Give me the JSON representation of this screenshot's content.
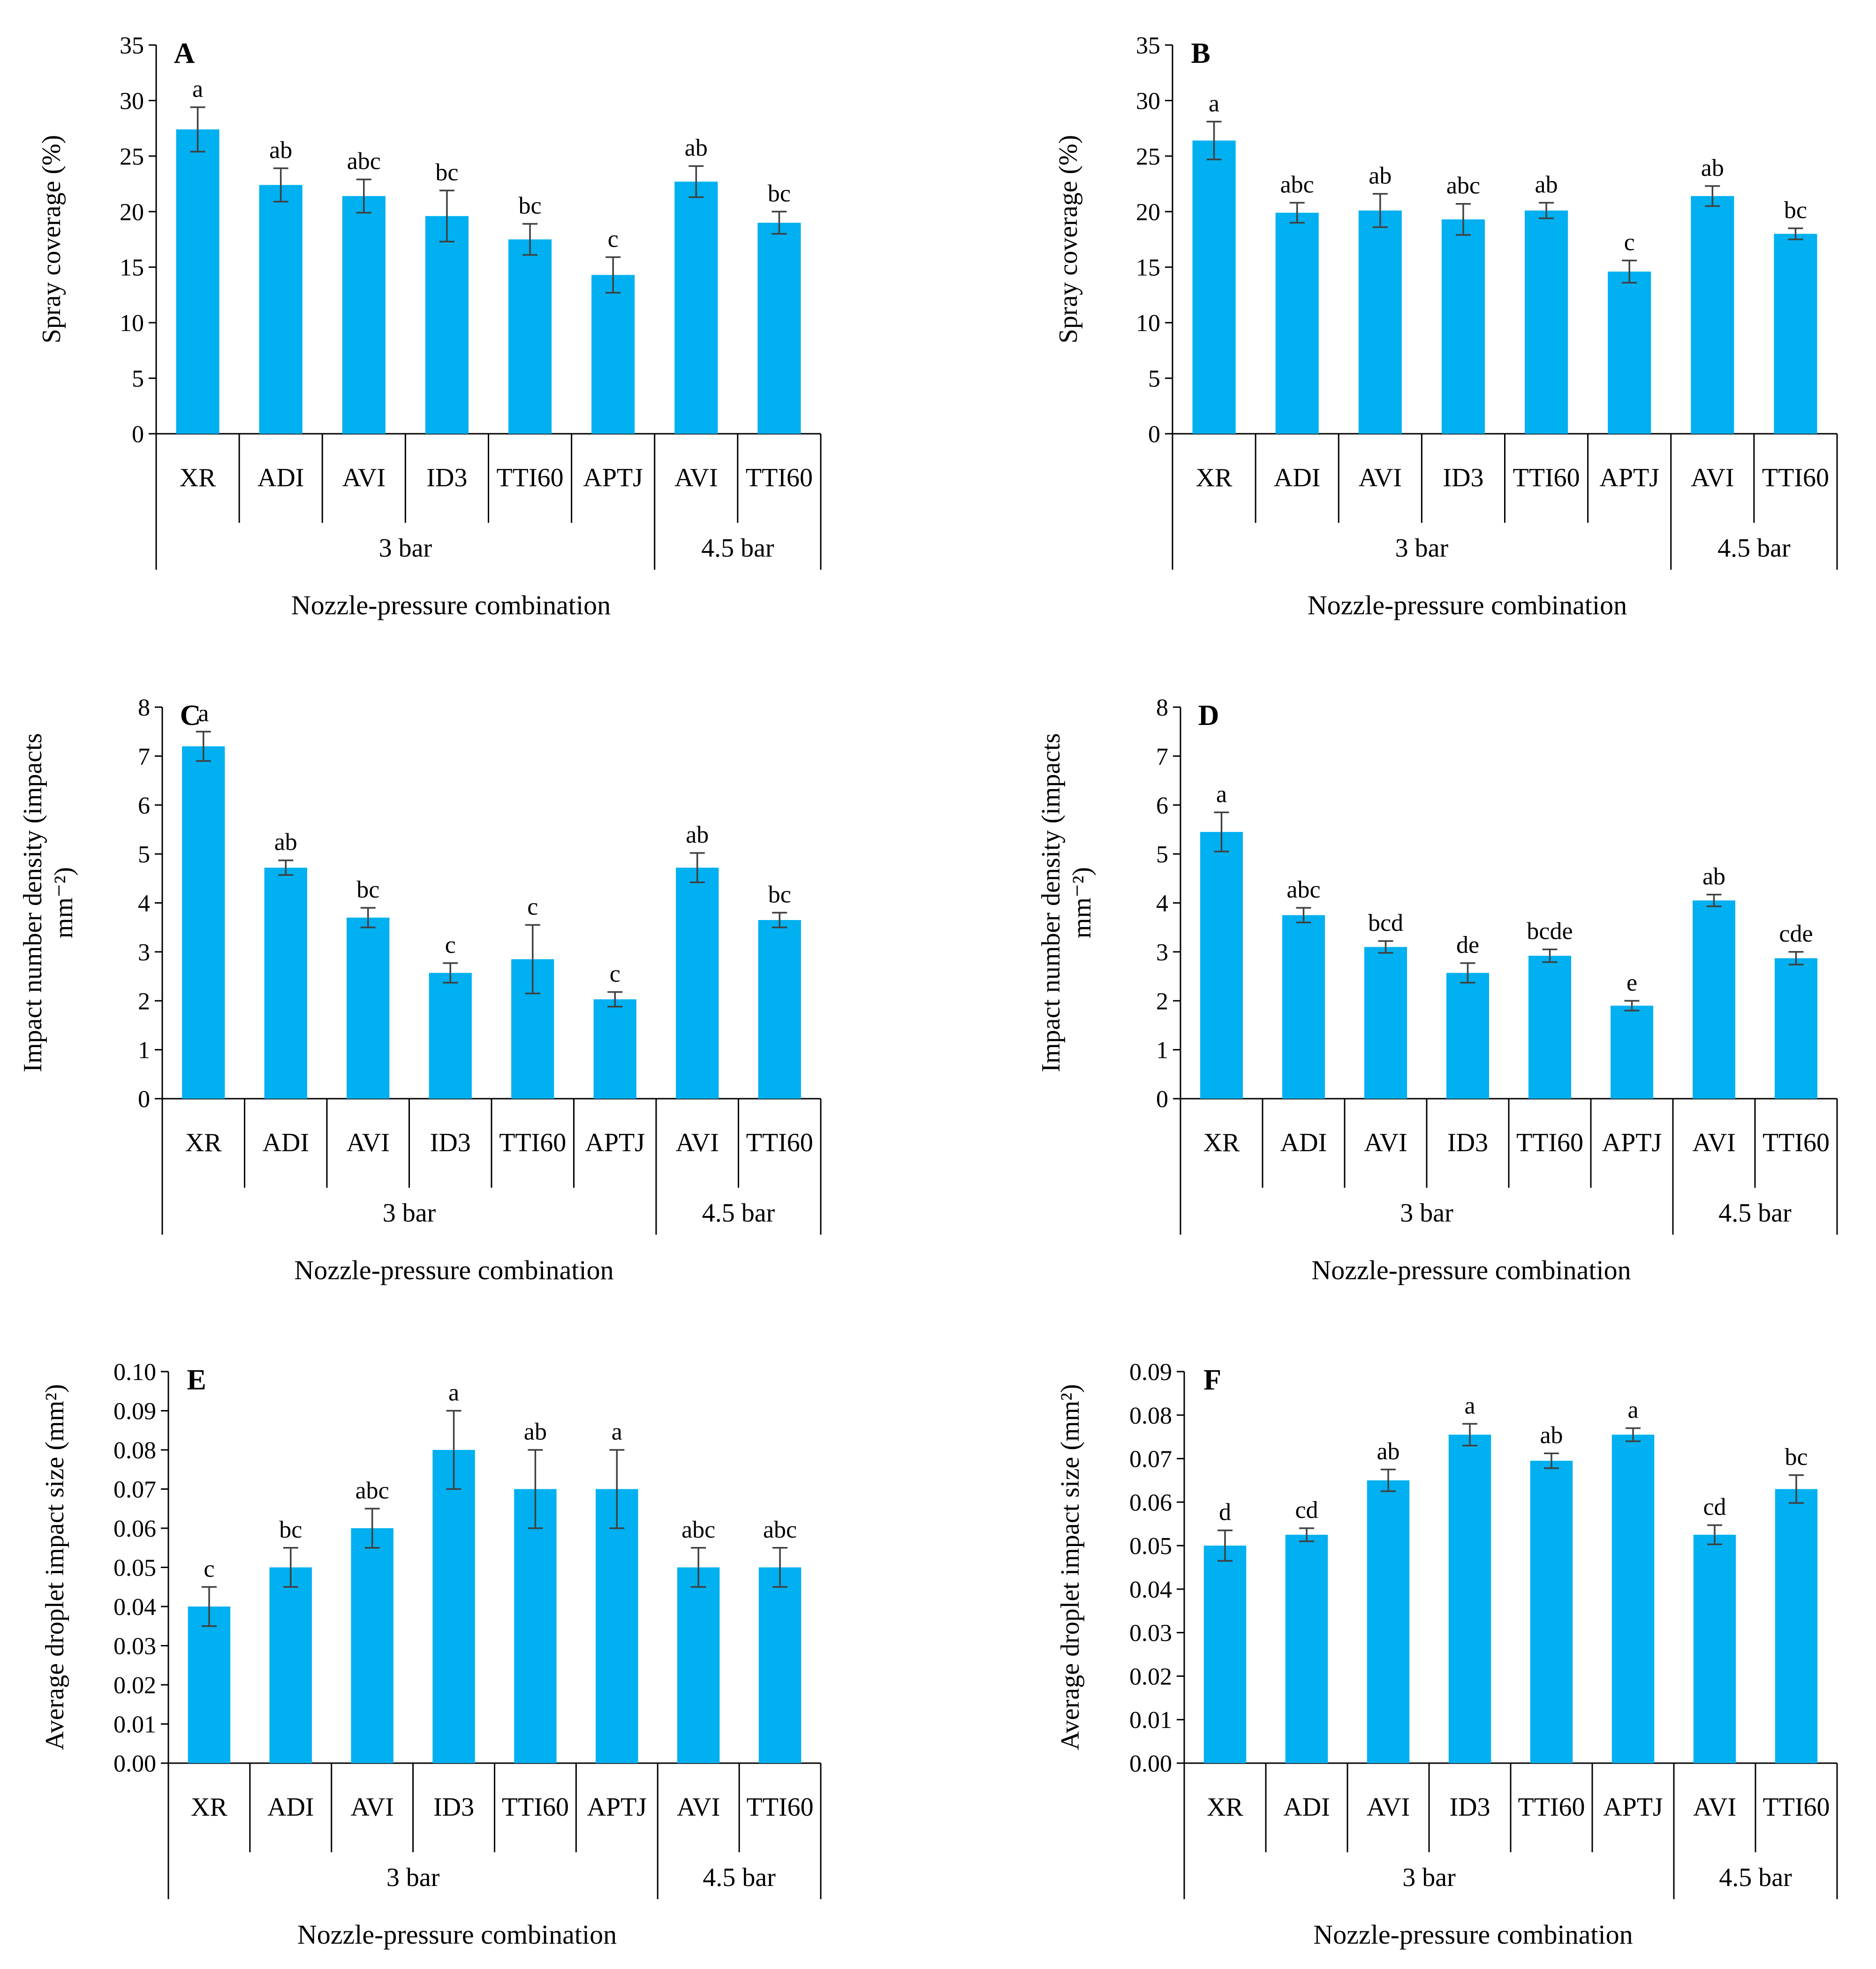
{
  "chart_data": [
    {
      "panel": "A",
      "type": "bar",
      "ylabel": "Spray coverage (%)",
      "xlabel": "Nozzle-pressure combination",
      "ylim": [
        0,
        35
      ],
      "yticks": [
        "0",
        "5",
        "10",
        "15",
        "20",
        "25",
        "30",
        "35"
      ],
      "categories": [
        "XR",
        "ADI",
        "AVI",
        "ID3",
        "TTI60",
        "APTJ",
        "AVI",
        "TTI60"
      ],
      "groups": [
        {
          "label": "3 bar",
          "count": 6
        },
        {
          "label": "4.5 bar",
          "count": 2
        }
      ],
      "values": [
        27.4,
        22.4,
        21.4,
        19.6,
        17.5,
        14.3,
        22.7,
        19.0
      ],
      "errors": [
        2.0,
        1.5,
        1.5,
        2.3,
        1.4,
        1.6,
        1.4,
        1.0
      ],
      "letters": [
        "a",
        "ab",
        "abc",
        "bc",
        "bc",
        "c",
        "ab",
        "bc"
      ]
    },
    {
      "panel": "B",
      "type": "bar",
      "ylabel": "Spray coverage (%)",
      "xlabel": "Nozzle-pressure combination",
      "ylim": [
        0,
        35
      ],
      "yticks": [
        "0",
        "5",
        "10",
        "15",
        "20",
        "25",
        "30",
        "35"
      ],
      "categories": [
        "XR",
        "ADI",
        "AVI",
        "ID3",
        "TTI60",
        "APTJ",
        "AVI",
        "TTI60"
      ],
      "groups": [
        {
          "label": "3 bar",
          "count": 6
        },
        {
          "label": "4.5 bar",
          "count": 2
        }
      ],
      "values": [
        26.4,
        19.9,
        20.1,
        19.3,
        20.1,
        14.6,
        21.4,
        18.0
      ],
      "errors": [
        1.7,
        0.9,
        1.5,
        1.4,
        0.7,
        1.0,
        0.9,
        0.5
      ],
      "letters": [
        "a",
        "abc",
        "ab",
        "abc",
        "ab",
        "c",
        "ab",
        "bc"
      ]
    },
    {
      "panel": "C",
      "type": "bar",
      "ylabel": "Impact number density (impacts mm⁻²)",
      "ylabel_lines": [
        "Impact number density (impacts",
        "mm⁻²)"
      ],
      "xlabel": "Nozzle-pressure combination",
      "ylim": [
        0,
        8
      ],
      "yticks": [
        "0",
        "1",
        "2",
        "3",
        "4",
        "5",
        "6",
        "7",
        "8"
      ],
      "categories": [
        "XR",
        "ADI",
        "AVI",
        "ID3",
        "TTI60",
        "APTJ",
        "AVI",
        "TTI60"
      ],
      "groups": [
        {
          "label": "3 bar",
          "count": 6
        },
        {
          "label": "4.5 bar",
          "count": 2
        }
      ],
      "values": [
        7.2,
        4.72,
        3.7,
        2.57,
        2.85,
        2.03,
        4.72,
        3.65
      ],
      "errors": [
        0.3,
        0.15,
        0.2,
        0.2,
        0.7,
        0.15,
        0.3,
        0.15
      ],
      "letters": [
        "a",
        "ab",
        "bc",
        "c",
        "c",
        "c",
        "ab",
        "bc"
      ]
    },
    {
      "panel": "D",
      "type": "bar",
      "ylabel": "Impact number density (impacts mm⁻²)",
      "ylabel_lines": [
        "Impact number density (impacts",
        "mm⁻²)"
      ],
      "xlabel": "Nozzle-pressure combination",
      "ylim": [
        0,
        8
      ],
      "yticks": [
        "0",
        "1",
        "2",
        "3",
        "4",
        "5",
        "6",
        "7",
        "8"
      ],
      "categories": [
        "XR",
        "ADI",
        "AVI",
        "ID3",
        "TTI60",
        "APTJ",
        "AVI",
        "TTI60"
      ],
      "groups": [
        {
          "label": "3 bar",
          "count": 6
        },
        {
          "label": "4.5 bar",
          "count": 2
        }
      ],
      "values": [
        5.45,
        3.75,
        3.1,
        2.57,
        2.92,
        1.9,
        4.05,
        2.87
      ],
      "errors": [
        0.4,
        0.15,
        0.12,
        0.2,
        0.13,
        0.1,
        0.12,
        0.13
      ],
      "letters": [
        "a",
        "abc",
        "bcd",
        "de",
        "bcde",
        "e",
        "ab",
        "cde"
      ]
    },
    {
      "panel": "E",
      "type": "bar",
      "ylabel": "Average droplet impact size (mm²)",
      "xlabel": "Nozzle-pressure combination",
      "ylim": [
        0,
        0.1
      ],
      "yticks": [
        "0.00",
        "0.01",
        "0.02",
        "0.03",
        "0.04",
        "0.05",
        "0.06",
        "0.07",
        "0.08",
        "0.09",
        "0.10"
      ],
      "categories": [
        "XR",
        "ADI",
        "AVI",
        "ID3",
        "TTI60",
        "APTJ",
        "AVI",
        "TTI60"
      ],
      "groups": [
        {
          "label": "3 bar",
          "count": 6
        },
        {
          "label": "4.5 bar",
          "count": 2
        }
      ],
      "values": [
        0.04,
        0.05,
        0.06,
        0.08,
        0.07,
        0.07,
        0.05,
        0.05
      ],
      "errors": [
        0.005,
        0.005,
        0.005,
        0.01,
        0.01,
        0.01,
        0.005,
        0.005
      ],
      "letters": [
        "c",
        "bc",
        "abc",
        "a",
        "ab",
        "a",
        "abc",
        "abc"
      ]
    },
    {
      "panel": "F",
      "type": "bar",
      "ylabel": "Average droplet impact size (mm²)",
      "xlabel": "Nozzle-pressure combination",
      "ylim": [
        0,
        0.09
      ],
      "yticks": [
        "0.00",
        "0.01",
        "0.02",
        "0.03",
        "0.04",
        "0.05",
        "0.06",
        "0.07",
        "0.08",
        "0.09"
      ],
      "categories": [
        "XR",
        "ADI",
        "AVI",
        "ID3",
        "TTI60",
        "APTJ",
        "AVI",
        "TTI60"
      ],
      "groups": [
        {
          "label": "3 bar",
          "count": 6
        },
        {
          "label": "4.5 bar",
          "count": 2
        }
      ],
      "values": [
        0.05,
        0.0525,
        0.065,
        0.0755,
        0.0695,
        0.0755,
        0.0525,
        0.063
      ],
      "errors": [
        0.0035,
        0.0015,
        0.0025,
        0.0025,
        0.0017,
        0.0015,
        0.0022,
        0.0032
      ],
      "letters": [
        "d",
        "cd",
        "ab",
        "a",
        "ab",
        "a",
        "cd",
        "bc"
      ]
    }
  ]
}
